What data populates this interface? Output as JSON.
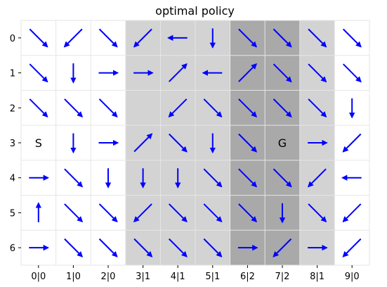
{
  "chart_data": {
    "type": "quiver-grid",
    "title": "optimal policy",
    "x_tick_labels": [
      "0|0",
      "1|0",
      "2|0",
      "3|1",
      "4|1",
      "5|1",
      "6|2",
      "7|2",
      "8|1",
      "9|0"
    ],
    "y_tick_labels": [
      "0",
      "1",
      "2",
      "3",
      "4",
      "5",
      "6"
    ],
    "column_shading": [
      0,
      0,
      0,
      1,
      1,
      1,
      2,
      2,
      1,
      0
    ],
    "shade_colors": [
      "#ffffff",
      "#d3d3d3",
      "#a9a9a9"
    ],
    "arrow_color": "#0000ff",
    "grid_color": "#e6e6e6",
    "start": {
      "row": 3,
      "col": 0,
      "label": "S"
    },
    "goal": {
      "row": 3,
      "col": 7,
      "label": "G"
    },
    "policy": [
      [
        "down-right",
        "down-left",
        "down-right",
        "down-left",
        "left",
        "down",
        "down-right",
        "down-right",
        "down-right",
        "down-right"
      ],
      [
        "down-right",
        "down",
        "right",
        "right",
        "up-right",
        "left",
        "up-right",
        "down-right",
        "down-right",
        "down-right"
      ],
      [
        "down-right",
        "down-right",
        "down-right",
        "",
        "down-left",
        "down-right",
        "down-right",
        "down-right",
        "down-right",
        "down"
      ],
      [
        "",
        "down",
        "right",
        "up-right",
        "down-right",
        "down",
        "down-right",
        "",
        "right",
        "down-left"
      ],
      [
        "right",
        "down-right",
        "down",
        "down",
        "down",
        "down-right",
        "down-right",
        "down-right",
        "down-left",
        "left"
      ],
      [
        "up",
        "down-right",
        "down-right",
        "down-left",
        "down-right",
        "down-right",
        "down-right",
        "down",
        "down-right",
        "down-left"
      ],
      [
        "right",
        "down-right",
        "down-right",
        "down-right",
        "down-right",
        "down-right",
        "right",
        "down-left",
        "right",
        "down-left"
      ]
    ]
  }
}
